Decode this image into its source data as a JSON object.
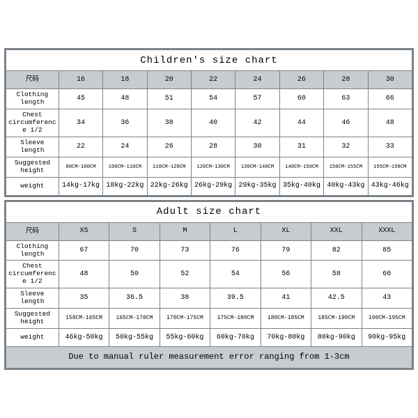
{
  "children": {
    "title": "Children's size chart",
    "size_label": "尺码",
    "sizes": [
      "16",
      "18",
      "20",
      "22",
      "24",
      "26",
      "28",
      "30"
    ],
    "rows": [
      {
        "label": "Clothing length",
        "v": [
          "45",
          "48",
          "51",
          "54",
          "57",
          "60",
          "63",
          "66"
        ],
        "tiny": false
      },
      {
        "label": "Chest circumference 1/2",
        "v": [
          "34",
          "36",
          "38",
          "40",
          "42",
          "44",
          "46",
          "48"
        ],
        "tiny": false
      },
      {
        "label": "Sleeve length",
        "v": [
          "22",
          "24",
          "26",
          "28",
          "30",
          "31",
          "32",
          "33"
        ],
        "tiny": false
      },
      {
        "label": "Suggested height",
        "v": [
          "90CM-100CM",
          "100CM-110CM",
          "110CM-120CM",
          "120CM-130CM",
          "130CM-140CM",
          "140CM-150CM",
          "150CM-155CM",
          "155CM-158CM"
        ],
        "tiny": true
      },
      {
        "label": "weight",
        "v": [
          "14kg-17kg",
          "18kg-22kg",
          "22kg-26kg",
          "26kg-29kg",
          "29kg-35kg",
          "35kg-40kg",
          "40kg-43kg",
          "43kg-46kg"
        ],
        "tiny": false
      }
    ]
  },
  "adult": {
    "title": "Adult size chart",
    "size_label": "尺码",
    "sizes": [
      "XS",
      "S",
      "M",
      "L",
      "XL",
      "XXL",
      "XXXL"
    ],
    "rows": [
      {
        "label": "Clothing length",
        "v": [
          "67",
          "70",
          "73",
          "76",
          "79",
          "82",
          "85"
        ]
      },
      {
        "label": "Chest circumference 1/2",
        "v": [
          "48",
          "50",
          "52",
          "54",
          "56",
          "58",
          "60"
        ]
      },
      {
        "label": "Sleeve length",
        "v": [
          "35",
          "36.5",
          "38",
          "39.5",
          "41",
          "42.5",
          "43"
        ]
      },
      {
        "label": "Suggested height",
        "v": [
          "158CM-165CM",
          "165CM-170CM",
          "170CM-175CM",
          "175CM-180CM",
          "180CM-185CM",
          "185CM-190CM",
          "190CM-195CM"
        ]
      },
      {
        "label": "weight",
        "v": [
          "46kg-50kg",
          "50kg-55kg",
          "55kg-60kg",
          "60kg-70kg",
          "70kg-80kg",
          "80kg-90kg",
          "90kg-95kg"
        ]
      }
    ],
    "footer": "Due to manual ruler measurement error ranging from 1-3cm"
  },
  "style": {
    "border_color": "#7a8288",
    "header_bg": "#c8ccd0",
    "page_bg": "#ffffff"
  }
}
